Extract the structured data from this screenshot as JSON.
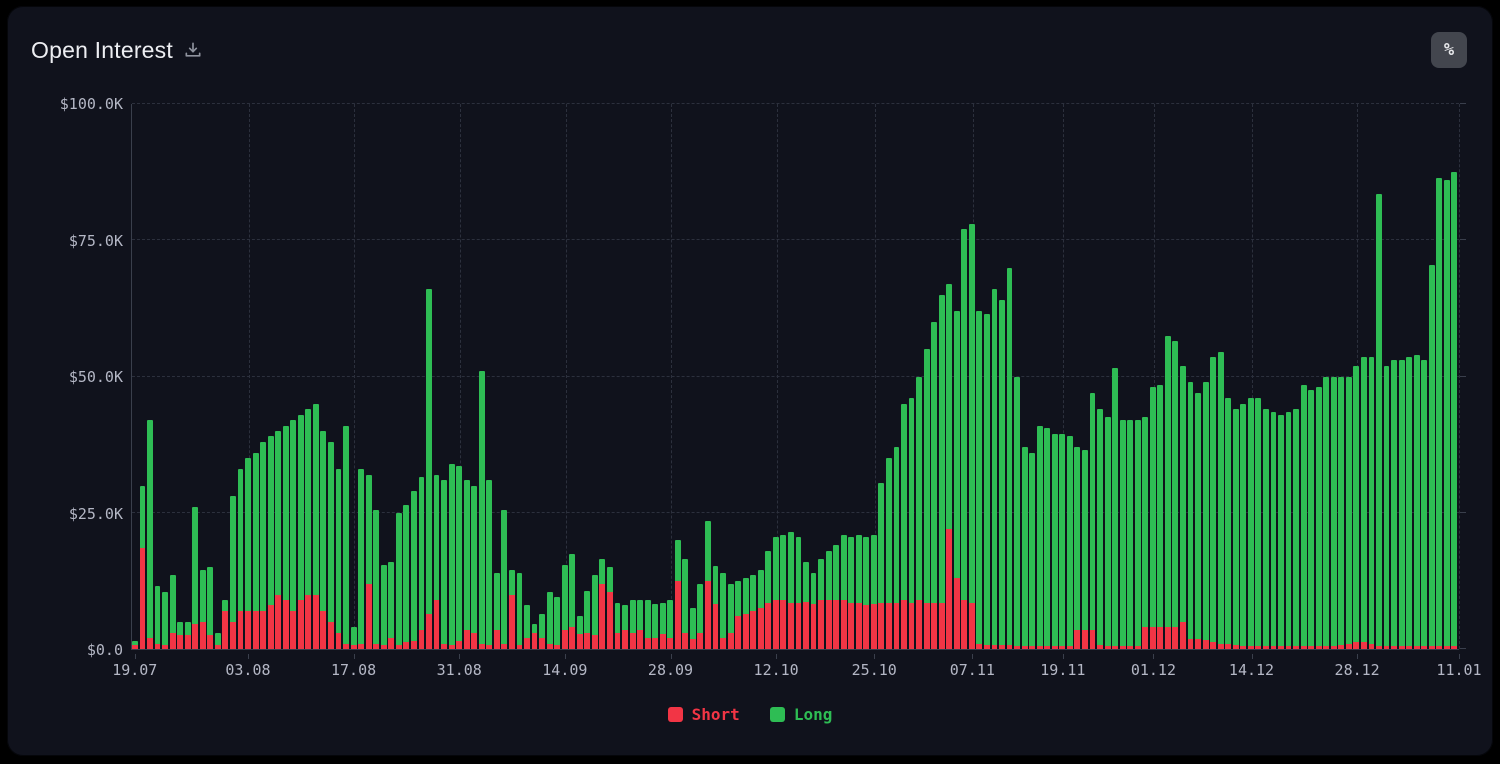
{
  "header": {
    "title": "Open Interest",
    "percent_button": "%"
  },
  "colors": {
    "page_bg": "#000000",
    "panel_bg": "#10121c",
    "axis_line": "#3a3f4c",
    "grid_line": "#2c303d",
    "tick_text": "#b4b7c5",
    "title_text": "#edeef2",
    "icon": "#8f939e",
    "button_bg": "#43464e",
    "short": "#f23545",
    "long": "#2ebd54"
  },
  "legend": {
    "items": [
      {
        "label": "Short",
        "color": "#f23545"
      },
      {
        "label": "Long",
        "color": "#2ebd54"
      }
    ]
  },
  "chart_data": {
    "type": "bar",
    "stacked": true,
    "title": "Open Interest",
    "unit": "USD thousands",
    "ylim_k": [
      0,
      100
    ],
    "grid": "dashed",
    "legend_position": "bottom",
    "y_axis_ticks": [
      {
        "label": "$100.0K",
        "value_k": 100
      },
      {
        "label": "$75.0K",
        "value_k": 75
      },
      {
        "label": "$50.0K",
        "value_k": 50
      },
      {
        "label": "$25.0K",
        "value_k": 25
      },
      {
        "label": "$0.0",
        "value_k": 0
      }
    ],
    "x_axis_ticks": [
      {
        "label": "19.07",
        "index": 0
      },
      {
        "label": "03.08",
        "index": 15
      },
      {
        "label": "17.08",
        "index": 29
      },
      {
        "label": "31.08",
        "index": 43
      },
      {
        "label": "14.09",
        "index": 57
      },
      {
        "label": "28.09",
        "index": 71
      },
      {
        "label": "12.10",
        "index": 85
      },
      {
        "label": "25.10",
        "index": 98
      },
      {
        "label": "07.11",
        "index": 111
      },
      {
        "label": "19.11",
        "index": 123
      },
      {
        "label": "01.12",
        "index": 135
      },
      {
        "label": "14.12",
        "index": 148
      },
      {
        "label": "28.12",
        "index": 162
      },
      {
        "label": "11.01",
        "index": 176
      }
    ],
    "categories": [
      "19.07",
      "20.07",
      "21.07",
      "22.07",
      "23.07",
      "24.07",
      "25.07",
      "26.07",
      "27.07",
      "28.07",
      "29.07",
      "30.07",
      "31.07",
      "01.08",
      "02.08",
      "03.08",
      "04.08",
      "05.08",
      "06.08",
      "07.08",
      "08.08",
      "09.08",
      "10.08",
      "11.08",
      "12.08",
      "13.08",
      "14.08",
      "15.08",
      "16.08",
      "17.08",
      "18.08",
      "19.08",
      "20.08",
      "21.08",
      "22.08",
      "23.08",
      "24.08",
      "25.08",
      "26.08",
      "27.08",
      "28.08",
      "29.08",
      "30.08",
      "31.08",
      "01.09",
      "02.09",
      "03.09",
      "04.09",
      "05.09",
      "06.09",
      "07.09",
      "08.09",
      "09.09",
      "10.09",
      "11.09",
      "12.09",
      "13.09",
      "14.09",
      "15.09",
      "16.09",
      "17.09",
      "18.09",
      "19.09",
      "20.09",
      "21.09",
      "22.09",
      "23.09",
      "24.09",
      "25.09",
      "26.09",
      "27.09",
      "28.09",
      "29.09",
      "30.09",
      "01.10",
      "02.10",
      "03.10",
      "04.10",
      "05.10",
      "06.10",
      "07.10",
      "08.10",
      "09.10",
      "10.10",
      "11.10",
      "12.10",
      "13.10",
      "14.10",
      "15.10",
      "16.10",
      "17.10",
      "18.10",
      "19.10",
      "20.10",
      "21.10",
      "22.10",
      "23.10",
      "24.10",
      "25.10",
      "26.10",
      "27.10",
      "28.10",
      "29.10",
      "30.10",
      "31.10",
      "01.11",
      "02.11",
      "03.11",
      "04.11",
      "05.11",
      "06.11",
      "07.11",
      "08.11",
      "09.11",
      "10.11",
      "11.11",
      "12.11",
      "13.11",
      "14.11",
      "15.11",
      "16.11",
      "17.11",
      "18.11",
      "19.11",
      "20.11",
      "21.11",
      "22.11",
      "23.11",
      "24.11",
      "25.11",
      "26.11",
      "27.11",
      "28.11",
      "29.11",
      "30.11",
      "01.12",
      "02.12",
      "03.12",
      "04.12",
      "05.12",
      "06.12",
      "07.12",
      "08.12",
      "09.12",
      "10.12",
      "11.12",
      "12.12",
      "13.12",
      "14.12",
      "15.12",
      "16.12",
      "17.12",
      "18.12",
      "19.12",
      "20.12",
      "21.12",
      "22.12",
      "23.12",
      "24.12",
      "25.12",
      "26.12",
      "27.12",
      "28.12",
      "29.12",
      "30.12",
      "31.12",
      "01.01",
      "02.01",
      "03.01",
      "04.01",
      "05.01",
      "06.01",
      "07.01",
      "08.01",
      "09.01",
      "10.01"
    ],
    "series": [
      {
        "name": "Short",
        "color": "#f23545",
        "values_k": [
          0.8,
          18.5,
          2,
          1,
          0.8,
          3,
          2.5,
          2.5,
          4.5,
          5,
          2.5,
          0.8,
          7,
          5,
          7,
          7,
          7,
          7,
          8,
          10,
          9,
          7,
          9,
          10,
          10,
          7,
          5,
          3,
          1,
          0.8,
          1,
          12,
          1,
          0.8,
          2,
          0.8,
          1.2,
          1.5,
          3.5,
          6.5,
          9,
          1,
          0.8,
          1.5,
          3.5,
          3,
          1,
          0.8,
          3.5,
          1,
          10,
          0.8,
          2,
          3,
          2,
          1,
          0.8,
          3.5,
          4,
          2.7,
          3,
          2.6,
          12,
          10.5,
          3,
          3.4,
          3,
          3.4,
          2,
          2,
          2.7,
          2,
          12.5,
          3,
          1.8,
          3,
          12.5,
          8.3,
          2,
          3,
          6,
          6.5,
          7,
          7.5,
          8.5,
          9,
          9,
          8.5,
          8.5,
          8.6,
          8.3,
          9,
          9,
          9,
          9,
          8.5,
          8.5,
          8,
          8.3,
          8.5,
          8.5,
          8.5,
          9,
          8.5,
          9,
          8.5,
          8.5,
          8.5,
          22,
          13,
          9,
          8.5,
          1,
          0.8,
          0.8,
          0.7,
          0.7,
          0.6,
          0.6,
          0.5,
          0.5,
          0.5,
          0.5,
          0.5,
          0.5,
          3.5,
          3.5,
          3.5,
          0.8,
          0.6,
          0.6,
          0.5,
          0.5,
          0.5,
          4,
          4,
          4,
          4,
          4,
          5,
          1.8,
          1.8,
          1.6,
          1.2,
          1,
          0.9,
          0.8,
          0.6,
          0.5,
          0.5,
          0.5,
          0.5,
          0.5,
          0.5,
          0.5,
          0.5,
          0.5,
          0.5,
          0.5,
          0.5,
          0.8,
          1,
          1.2,
          1.2,
          1,
          0.5,
          0.5,
          0.5,
          0.5,
          0.5,
          0.5,
          0.5,
          0.5,
          0.5,
          0.5,
          0.5
        ]
      },
      {
        "name": "Long",
        "color": "#2ebd54",
        "values_k": [
          0.7,
          11.5,
          40,
          10.5,
          9.7,
          10.5,
          2.5,
          2.5,
          21.5,
          9.5,
          12.5,
          2.2,
          2,
          23,
          26,
          28,
          29,
          31,
          31,
          30,
          32,
          35,
          34,
          34,
          35,
          33,
          33,
          30,
          40,
          3.2,
          32,
          20,
          24.5,
          14.7,
          14,
          24.2,
          25.3,
          27.5,
          28,
          59.5,
          23,
          30,
          33.2,
          32,
          27.5,
          27,
          50,
          30.2,
          10.5,
          24.5,
          4.5,
          13.2,
          6,
          1.5,
          4.5,
          9.5,
          8.7,
          12,
          13.5,
          3.3,
          7.7,
          10.9,
          4.5,
          4.5,
          5.5,
          4.6,
          6,
          5.6,
          7,
          6.3,
          5.8,
          7,
          7.5,
          13.5,
          5.8,
          9,
          11,
          7,
          12,
          9,
          6.5,
          6.5,
          6.5,
          7,
          9.5,
          11.5,
          12,
          13,
          12,
          7.4,
          5.7,
          7.5,
          9,
          10,
          12,
          12,
          12.5,
          12.5,
          12.7,
          22,
          26.5,
          28.5,
          36,
          37.5,
          41,
          46.5,
          51.5,
          56.5,
          45,
          49,
          68,
          69.5,
          61,
          60.7,
          65.2,
          63.3,
          69.3,
          49.4,
          36.4,
          35.5,
          40.5,
          40,
          39,
          39,
          38.5,
          33.5,
          33,
          43.5,
          43.2,
          41.9,
          50.9,
          41.5,
          41.5,
          41.5,
          38.5,
          44,
          44.5,
          53.5,
          52.5,
          47,
          47.2,
          45.2,
          47.4,
          52.3,
          53.5,
          45.1,
          43.2,
          44.4,
          45.5,
          45.5,
          43.5,
          43,
          42.5,
          43,
          43.5,
          48,
          47,
          47.5,
          49.5,
          49.5,
          49.2,
          49,
          50.8,
          52.3,
          52.5,
          83,
          51.5,
          52.5,
          52.5,
          53,
          53.5,
          52.5,
          70,
          86,
          85.5,
          87
        ]
      }
    ]
  }
}
